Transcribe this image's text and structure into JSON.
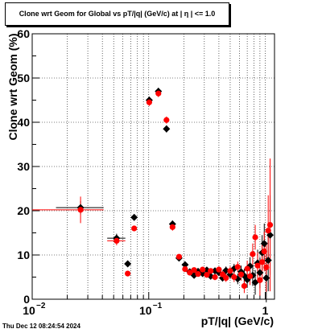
{
  "title": "Clone wrt Geom for Global vs pT/|q| (GeV/c) at |  η  | <= 1.0",
  "timestamp": "Thu Dec 12 08:24:54 2024",
  "chart_data": {
    "type": "scatter",
    "title": "Clone wrt Geom for Global vs pT/|q| (GeV/c) at |  η  | <= 1.0",
    "xlabel": "pT/|q| (GeV/c)",
    "ylabel": "Clone wrt Geom (%)",
    "xscale": "log",
    "xlim": [
      0.01,
      1.2
    ],
    "ylim": [
      0,
      60
    ],
    "grid": true,
    "x_ticks": [
      {
        "v": 0.01,
        "label": "10"
      },
      {
        "v": 0.1,
        "label": "10"
      },
      {
        "v": 1,
        "label": "1"
      }
    ],
    "x_tick_exponents": [
      "−2",
      "−1",
      ""
    ],
    "y_ticks": [
      0,
      10,
      20,
      30,
      40,
      50,
      60
    ],
    "series": [
      {
        "color": "#000000",
        "marker": "diamond",
        "points": [
          [
            0.026,
            20.7,
            0.016,
            0.041,
            1.5
          ],
          [
            0.053,
            13.8,
            0.044,
            0.063,
            1.0
          ],
          [
            0.066,
            8.0,
            null,
            null,
            0.5
          ],
          [
            0.075,
            18.5,
            null,
            null,
            0.6
          ],
          [
            0.101,
            45.0,
            null,
            null,
            0.8
          ],
          [
            0.121,
            47.0,
            null,
            null,
            0.8
          ],
          [
            0.142,
            38.5,
            null,
            null,
            0.8
          ],
          [
            0.16,
            17.0,
            null,
            null,
            0.8
          ],
          [
            0.182,
            9.3,
            null,
            null,
            0.5
          ],
          [
            0.205,
            7.8,
            null,
            null,
            0.5
          ],
          [
            0.225,
            6.2,
            null,
            null,
            0.5
          ],
          [
            0.245,
            5.4,
            null,
            null,
            0.5
          ],
          [
            0.265,
            6.3,
            null,
            null,
            0.5
          ],
          [
            0.29,
            5.8,
            null,
            null,
            0.6
          ],
          [
            0.315,
            6.6,
            null,
            null,
            0.6
          ],
          [
            0.34,
            5.2,
            null,
            null,
            0.6
          ],
          [
            0.37,
            6.4,
            null,
            null,
            0.7
          ],
          [
            0.4,
            6.0,
            null,
            null,
            0.7
          ],
          [
            0.43,
            4.8,
            null,
            null,
            0.8
          ],
          [
            0.46,
            6.5,
            null,
            null,
            0.9
          ],
          [
            0.5,
            5.6,
            null,
            null,
            1.0
          ],
          [
            0.54,
            6.9,
            null,
            null,
            1.1
          ],
          [
            0.58,
            4.6,
            null,
            null,
            1.2
          ],
          [
            0.62,
            6.2,
            null,
            null,
            1.4
          ],
          [
            0.66,
            5.3,
            null,
            null,
            1.6
          ],
          [
            0.7,
            4.4,
            null,
            null,
            1.8
          ],
          [
            0.74,
            7.5,
            null,
            null,
            2.0
          ],
          [
            0.78,
            5.4,
            null,
            null,
            2.4
          ],
          [
            0.82,
            3.8,
            null,
            null,
            2.8
          ],
          [
            0.86,
            8.2,
            null,
            null,
            3.0
          ],
          [
            0.9,
            6.0,
            null,
            null,
            3.5
          ],
          [
            0.94,
            10.5,
            null,
            null,
            4.0
          ],
          [
            0.98,
            12.6,
            null,
            null,
            4.5
          ],
          [
            1.02,
            4.8,
            null,
            null,
            5.5
          ],
          [
            1.06,
            8.8,
            null,
            null,
            7.0
          ],
          [
            1.1,
            14.5,
            null,
            null,
            9.0
          ]
        ]
      },
      {
        "color": "#ff0000",
        "marker": "circle",
        "points": [
          [
            0.026,
            20.2,
            0.01,
            0.041,
            3.0
          ],
          [
            0.053,
            13.2,
            0.044,
            0.063,
            1.0
          ],
          [
            0.066,
            5.8,
            null,
            null,
            0.5
          ],
          [
            0.075,
            16.0,
            null,
            null,
            0.6
          ],
          [
            0.101,
            44.5,
            null,
            null,
            0.8
          ],
          [
            0.121,
            46.5,
            null,
            null,
            0.8
          ],
          [
            0.142,
            40.5,
            null,
            null,
            0.8
          ],
          [
            0.16,
            16.3,
            null,
            null,
            0.8
          ],
          [
            0.182,
            9.6,
            null,
            null,
            0.5
          ],
          [
            0.205,
            6.8,
            null,
            null,
            0.5
          ],
          [
            0.225,
            6.0,
            null,
            null,
            0.5
          ],
          [
            0.245,
            6.6,
            null,
            null,
            0.5
          ],
          [
            0.265,
            5.7,
            null,
            null,
            0.5
          ],
          [
            0.29,
            6.7,
            null,
            null,
            0.6
          ],
          [
            0.315,
            5.5,
            null,
            null,
            0.6
          ],
          [
            0.34,
            6.4,
            null,
            null,
            0.6
          ],
          [
            0.37,
            5.0,
            null,
            null,
            0.7
          ],
          [
            0.4,
            6.7,
            null,
            null,
            0.7
          ],
          [
            0.43,
            5.6,
            null,
            null,
            0.8
          ],
          [
            0.46,
            4.8,
            null,
            null,
            0.9
          ],
          [
            0.5,
            6.4,
            null,
            null,
            1.0
          ],
          [
            0.54,
            5.0,
            null,
            null,
            1.1
          ],
          [
            0.58,
            7.3,
            null,
            null,
            1.2
          ],
          [
            0.62,
            5.6,
            null,
            null,
            1.4
          ],
          [
            0.66,
            3.0,
            null,
            null,
            1.6
          ],
          [
            0.7,
            6.9,
            null,
            null,
            1.8
          ],
          [
            0.74,
            5.2,
            null,
            null,
            2.0
          ],
          [
            0.78,
            10.2,
            null,
            null,
            2.4
          ],
          [
            0.82,
            14.0,
            null,
            null,
            2.8
          ],
          [
            0.86,
            7.6,
            null,
            null,
            3.0
          ],
          [
            0.9,
            4.3,
            null,
            null,
            3.5
          ],
          [
            0.94,
            8.4,
            null,
            null,
            4.0
          ],
          [
            0.98,
            10.8,
            null,
            null,
            4.5
          ],
          [
            1.02,
            7.2,
            null,
            null,
            5.5
          ],
          [
            1.06,
            15.5,
            null,
            null,
            8.0
          ],
          [
            1.1,
            16.8,
            null,
            null,
            15.0
          ]
        ]
      }
    ]
  }
}
